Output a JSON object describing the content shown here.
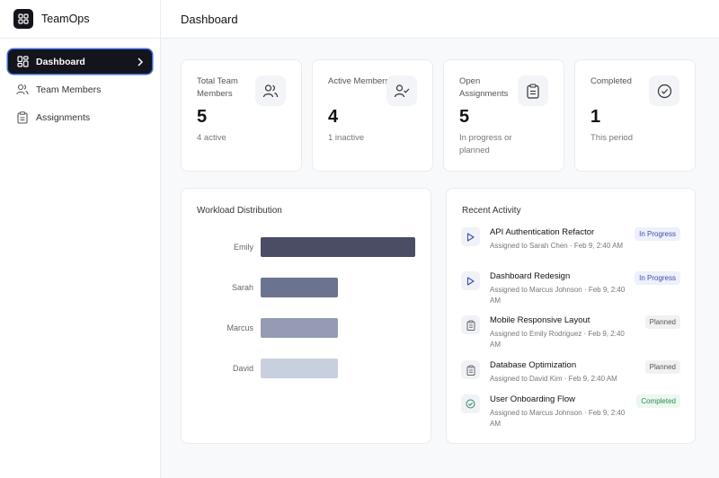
{
  "brand": {
    "name": "TeamOps"
  },
  "sidebar": {
    "items": [
      {
        "label": "Dashboard",
        "icon": "dashboard-icon",
        "active": true
      },
      {
        "label": "Team Members",
        "icon": "users-icon",
        "active": false
      },
      {
        "label": "Assignments",
        "icon": "clipboard-icon",
        "active": false
      }
    ]
  },
  "header": {
    "title": "Dashboard"
  },
  "stats": [
    {
      "label": "Total Team Members",
      "value": "5",
      "sub": "4 active",
      "icon": "users-icon"
    },
    {
      "label": "Active Members",
      "value": "4",
      "sub": "1 inactive",
      "icon": "user-check-icon"
    },
    {
      "label": "Open Assignments",
      "value": "5",
      "sub": "In progress or planned",
      "icon": "clipboard-icon"
    },
    {
      "label": "Completed",
      "value": "1",
      "sub": "This period",
      "icon": "check-circle-icon"
    }
  ],
  "workload": {
    "title": "Workload Distribution",
    "chart_data": {
      "type": "bar",
      "orientation": "horizontal",
      "categories": [
        "Emily",
        "Sarah",
        "Marcus",
        "David"
      ],
      "values": [
        2,
        1,
        1,
        1
      ],
      "colors": [
        "#4a4d63",
        "#6b7390",
        "#949bb2",
        "#c8d0de"
      ],
      "xlim": [
        0,
        2
      ]
    }
  },
  "activity": {
    "title": "Recent Activity",
    "items": [
      {
        "title": "API Authentication Refactor",
        "meta": "Assigned to Sarah Chen · Feb 9, 2:40 AM",
        "status": "In Progress",
        "status_kind": "progress",
        "icon": "play-icon"
      },
      {
        "title": "Dashboard Redesign",
        "meta": "Assigned to Marcus Johnson · Feb 9, 2:40 AM",
        "status": "In Progress",
        "status_kind": "progress",
        "icon": "play-icon"
      },
      {
        "title": "Mobile Responsive Layout",
        "meta": "Assigned to Emily Rodriguez · Feb 9, 2:40 AM",
        "status": "Planned",
        "status_kind": "planned",
        "icon": "clipboard-icon"
      },
      {
        "title": "Database Optimization",
        "meta": "Assigned to David Kim · Feb 9, 2:40 AM",
        "status": "Planned",
        "status_kind": "planned",
        "icon": "clipboard-icon"
      },
      {
        "title": "User Onboarding Flow",
        "meta": "Assigned to Marcus Johnson · Feb 9, 2:40 AM",
        "status": "Completed",
        "status_kind": "completed",
        "icon": "check-circle-icon"
      }
    ]
  }
}
